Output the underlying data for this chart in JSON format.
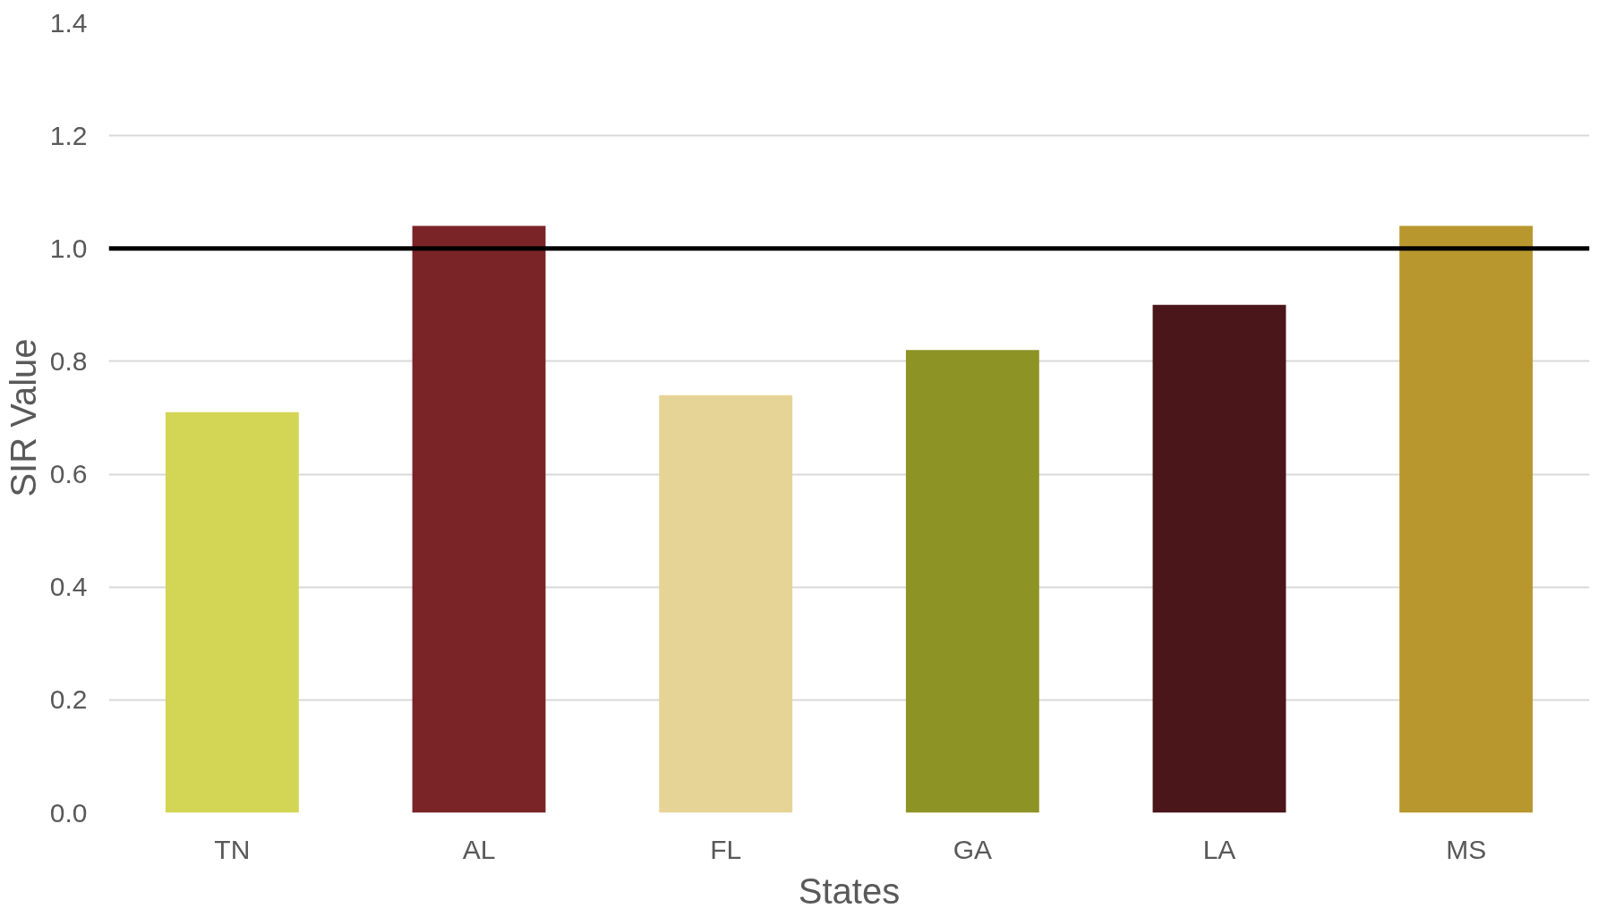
{
  "chart_data": {
    "type": "bar",
    "xlabel": "States",
    "ylabel": "SIR Value",
    "categories": [
      "TN",
      "AL",
      "FL",
      "GA",
      "LA",
      "MS"
    ],
    "values": [
      0.71,
      1.04,
      0.74,
      0.82,
      0.9,
      1.04
    ],
    "colors": [
      "#d3d655",
      "#7a2428",
      "#e6d497",
      "#8e9325",
      "#4a161a",
      "#b8972e"
    ],
    "ylim": [
      0,
      1.4
    ],
    "yticks": [
      {
        "value": 0,
        "label": "0.0"
      },
      0.2,
      0.4,
      0.6,
      0.8,
      {
        "value": 1,
        "label": "1.0"
      },
      1.2,
      1.4
    ],
    "grid": "y",
    "ref_lines": [
      {
        "axis": "y",
        "value": 1.0,
        "color": "#000000"
      }
    ]
  }
}
